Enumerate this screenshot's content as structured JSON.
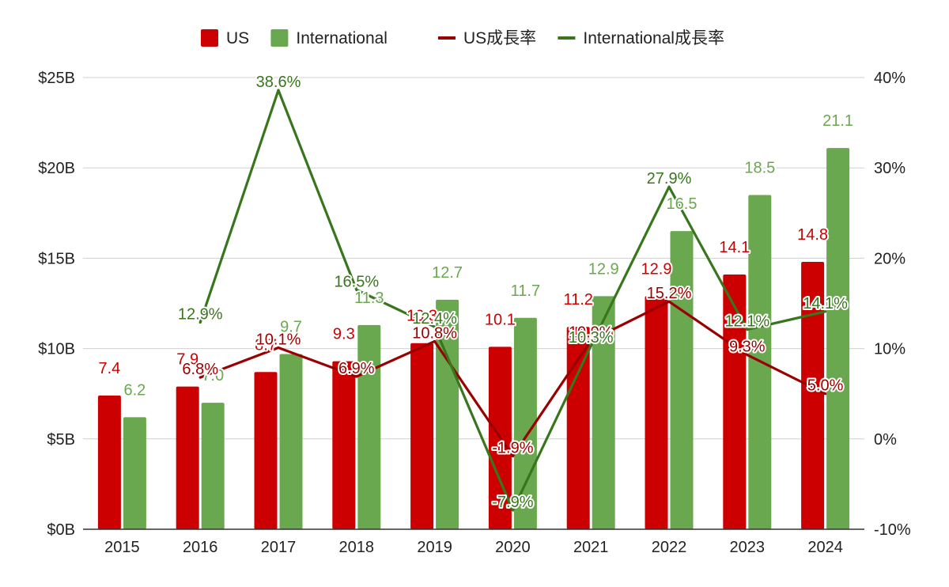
{
  "chart_data": {
    "type": "bar",
    "categories": [
      "2015",
      "2016",
      "2017",
      "2018",
      "2019",
      "2020",
      "2021",
      "2022",
      "2023",
      "2024"
    ],
    "series": [
      {
        "name": "US",
        "kind": "bar",
        "axis": "left",
        "color": "#cc0000",
        "values": [
          7.4,
          7.9,
          8.7,
          9.3,
          10.3,
          10.1,
          11.2,
          12.9,
          14.1,
          14.8
        ],
        "labels": [
          "7.4",
          "7.9",
          "8.7",
          "9.3",
          "10.3",
          "10.1",
          "11.2",
          "12.9",
          "14.1",
          "14.8"
        ]
      },
      {
        "name": "International",
        "kind": "bar",
        "axis": "left",
        "color": "#6aa84f",
        "values": [
          6.2,
          7.0,
          9.7,
          11.3,
          12.7,
          11.7,
          12.9,
          16.5,
          18.5,
          21.1
        ],
        "labels": [
          "6.2",
          "7.0",
          "9.7",
          "11.3",
          "12.7",
          "11.7",
          "12.9",
          "16.5",
          "18.5",
          "21.1"
        ]
      },
      {
        "name": "US成長率",
        "kind": "line",
        "axis": "right",
        "color": "#990000",
        "values": [
          null,
          6.8,
          10.1,
          6.9,
          10.8,
          -1.9,
          10.9,
          15.2,
          9.3,
          5.0
        ],
        "labels": [
          null,
          "6.8%",
          "10.1%",
          "6.9%",
          "10.8%",
          "-1.9%",
          "10.9%",
          "15.2%",
          "9.3%",
          "5.0%"
        ]
      },
      {
        "name": "International成長率",
        "kind": "line",
        "axis": "right",
        "color": "#38761d",
        "values": [
          null,
          12.9,
          38.6,
          16.5,
          12.4,
          -7.9,
          10.3,
          27.9,
          12.1,
          14.1
        ],
        "labels": [
          null,
          "12.9%",
          "38.6%",
          "16.5%",
          "12.4%",
          "-7.9%",
          "10.3%",
          "27.9%",
          "12.1%",
          "14.1%"
        ]
      }
    ],
    "y_left": {
      "min": 0,
      "max": 25,
      "ticks": [
        0,
        5,
        10,
        15,
        20,
        25
      ],
      "tick_labels": [
        "$0B",
        "$5B",
        "$10B",
        "$15B",
        "$20B",
        "$25B"
      ]
    },
    "y_right": {
      "min": -10,
      "max": 40,
      "ticks": [
        -10,
        0,
        10,
        20,
        30,
        40
      ],
      "tick_labels": [
        "-10%",
        "0%",
        "10%",
        "20%",
        "30%",
        "40%"
      ]
    },
    "grid": true,
    "legend_position": "top-center",
    "title": "",
    "xlabel": "",
    "ylabel": ""
  }
}
